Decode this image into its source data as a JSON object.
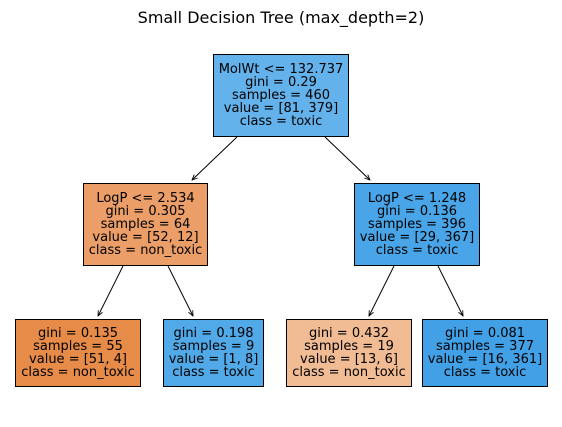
{
  "title": "Small Decision Tree (max_depth=2)",
  "class_colors": {
    "toxic": "#399de5",
    "non_toxic": "#e58139"
  },
  "tree": {
    "root": {
      "lines": [
        "MolWt <= 132.737",
        "gini = 0.29",
        "samples = 460",
        "value = [81, 379]",
        "class = toxic"
      ],
      "class": "toxic",
      "value": [
        81,
        379
      ]
    },
    "left": {
      "lines": [
        "LogP <= 2.534",
        "gini = 0.305",
        "samples = 64",
        "value = [52, 12]",
        "class = non_toxic"
      ],
      "class": "non_toxic",
      "value": [
        52,
        12
      ]
    },
    "right": {
      "lines": [
        "LogP <= 1.248",
        "gini = 0.136",
        "samples = 396",
        "value = [29, 367]",
        "class = toxic"
      ],
      "class": "toxic",
      "value": [
        29,
        367
      ]
    },
    "left_left": {
      "lines": [
        "gini = 0.135",
        "samples = 55",
        "value = [51, 4]",
        "class = non_toxic"
      ],
      "class": "non_toxic",
      "value": [
        51,
        4
      ]
    },
    "left_right": {
      "lines": [
        "gini = 0.198",
        "samples = 9",
        "value = [1, 8]",
        "class = toxic"
      ],
      "class": "toxic",
      "value": [
        1,
        8
      ]
    },
    "right_left": {
      "lines": [
        "gini = 0.432",
        "samples = 19",
        "value = [13, 6]",
        "class = non_toxic"
      ],
      "class": "non_toxic",
      "value": [
        13,
        6
      ]
    },
    "right_right": {
      "lines": [
        "gini = 0.081",
        "samples = 377",
        "value = [16, 361]",
        "class = toxic"
      ],
      "class": "toxic",
      "value": [
        16,
        361
      ]
    }
  }
}
